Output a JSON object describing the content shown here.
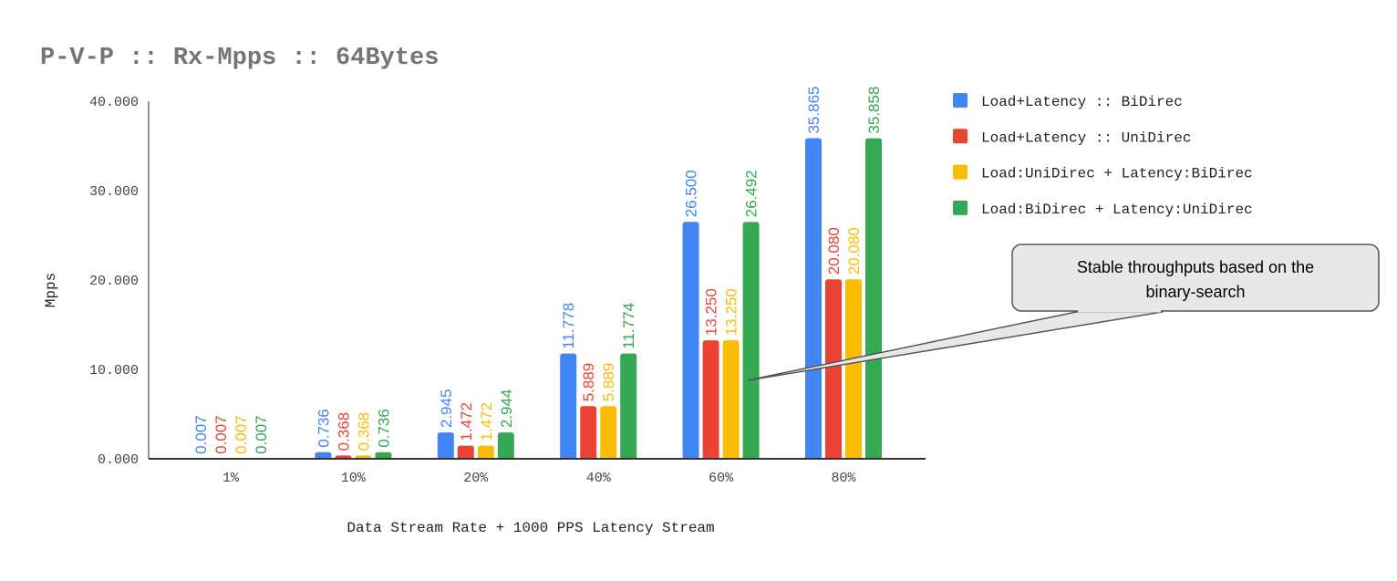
{
  "chart_data": {
    "type": "bar",
    "title": "P-V-P :: Rx-Mpps :: 64Bytes",
    "xlabel": "Data Stream Rate + 1000 PPS Latency Stream",
    "ylabel": "Mpps",
    "ylim": [
      0,
      40
    ],
    "yticks": [
      "0.000",
      "10.000",
      "20.000",
      "30.000",
      "40.000"
    ],
    "categories": [
      "1%",
      "10%",
      "20%",
      "40%",
      "60%",
      "80%"
    ],
    "legend_position": "right",
    "series": [
      {
        "name": "Load+Latency :: BiDirec",
        "color": "#4285f4",
        "values": [
          0.007,
          0.736,
          2.945,
          11.778,
          26.5,
          35.865
        ],
        "labels": [
          "0.007",
          "0.736",
          "2.945",
          "11.778",
          "26.500",
          "35.865"
        ]
      },
      {
        "name": "Load+Latency :: UniDirec",
        "color": "#ea4335",
        "values": [
          0.007,
          0.368,
          1.472,
          5.889,
          13.25,
          20.08
        ],
        "labels": [
          "0.007",
          "0.368",
          "1.472",
          "5.889",
          "13.250",
          "20.080"
        ]
      },
      {
        "name": "Load:UniDirec + Latency:BiDirec",
        "color": "#fbbc04",
        "values": [
          0.007,
          0.368,
          1.472,
          5.889,
          13.25,
          20.08
        ],
        "labels": [
          "0.007",
          "0.368",
          "1.472",
          "5.889",
          "13.250",
          "20.080"
        ]
      },
      {
        "name": "Load:BiDirec + Latency:UniDirec",
        "color": "#34a853",
        "values": [
          0.007,
          0.736,
          2.944,
          11.774,
          26.492,
          35.858
        ],
        "labels": [
          "0.007",
          "0.736",
          "2.944",
          "11.774",
          "26.492",
          "35.858"
        ]
      }
    ],
    "annotation": {
      "line1": "Stable throughputs based on the",
      "line2": "binary-search"
    }
  }
}
